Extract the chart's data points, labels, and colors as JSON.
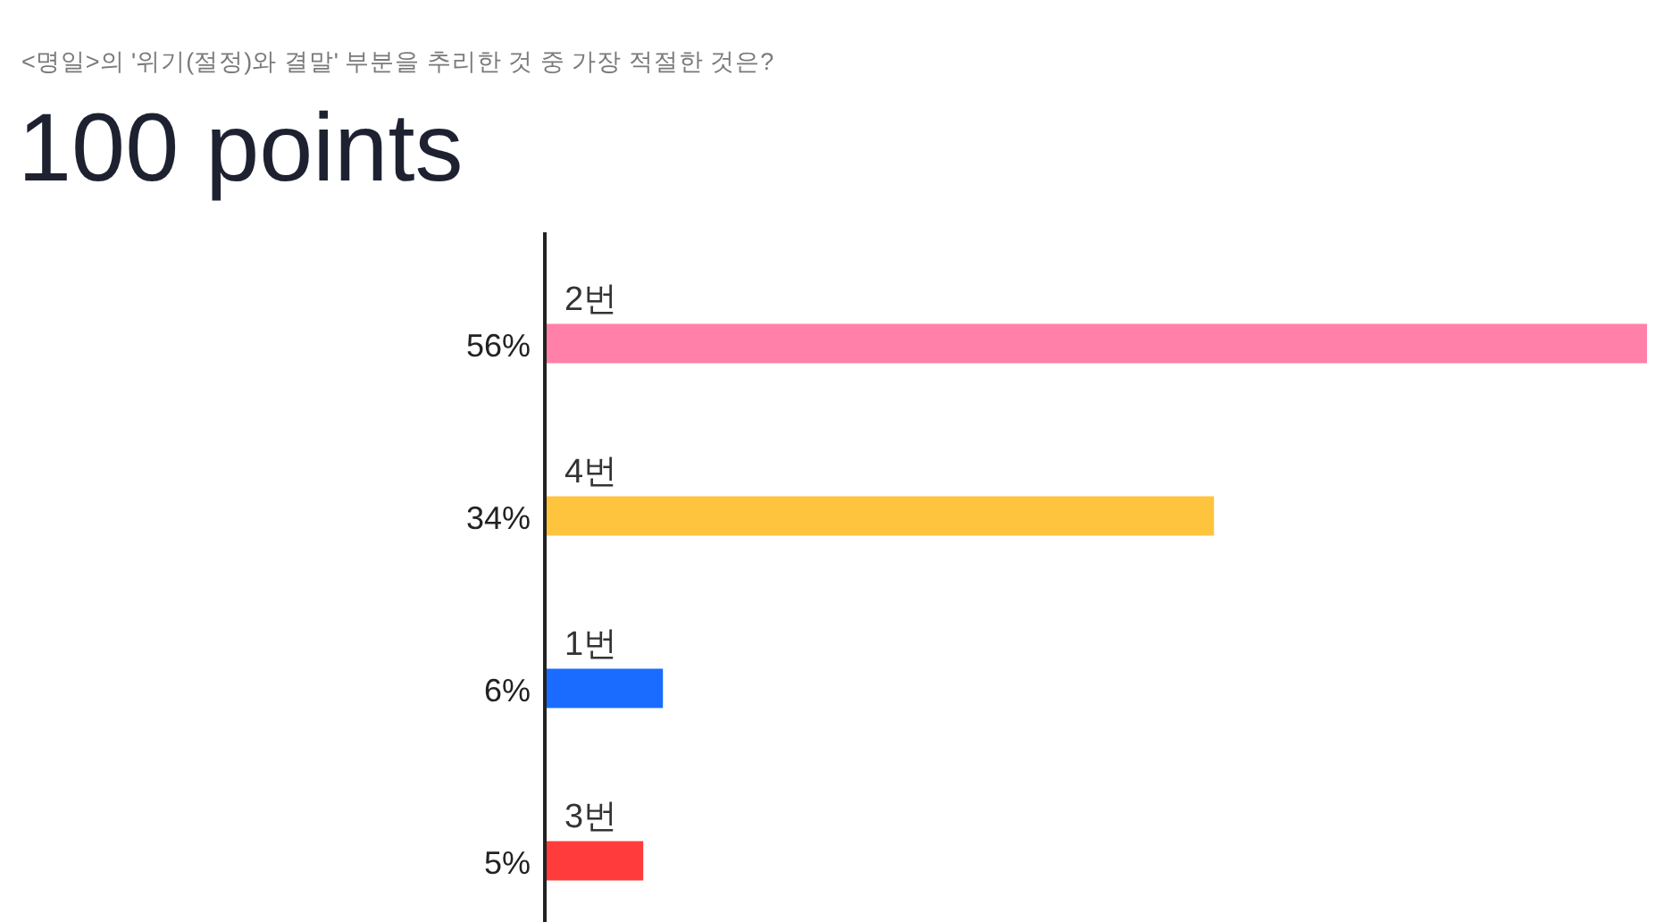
{
  "chart_data": {
    "type": "bar",
    "orientation": "horizontal",
    "title": "100 points",
    "subtitle": "<명일>의 '위기(절정)와 결말' 부분을 추리한 것 중 가장 적절한 것은?",
    "categories": [
      "2번",
      "4번",
      "1번",
      "3번"
    ],
    "values": [
      56,
      34,
      6,
      5
    ],
    "colors": [
      "#ff80a8",
      "#ffc43d",
      "#196cff",
      "#ff3b3b"
    ],
    "value_labels": [
      "56%",
      "34%",
      "6%",
      "5%"
    ]
  }
}
